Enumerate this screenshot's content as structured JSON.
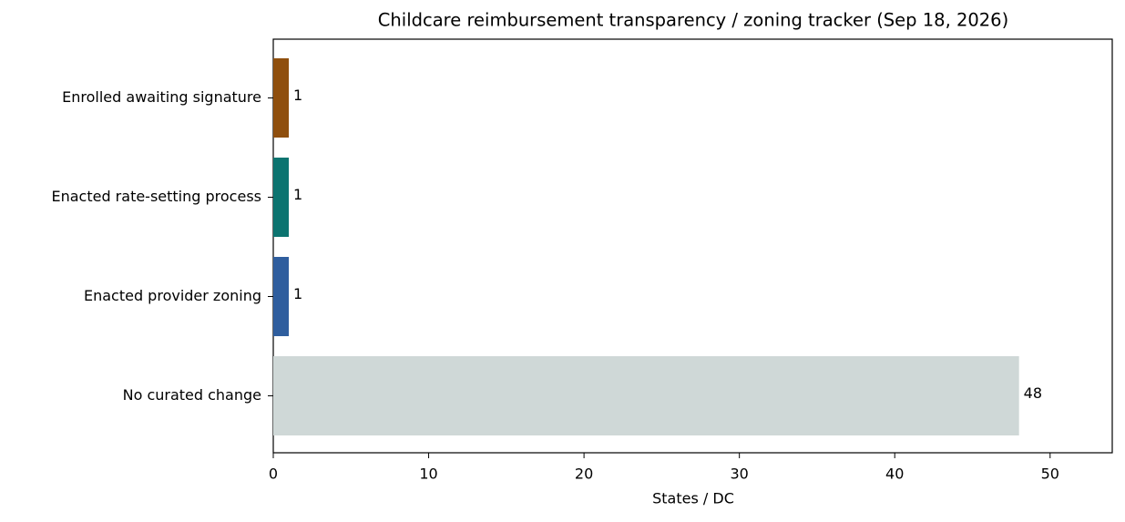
{
  "chart_data": {
    "type": "barh",
    "title": "Childcare reimbursement transparency / zoning tracker (Sep 18, 2026)",
    "xlabel": "States / DC",
    "categories": [
      "Enrolled awaiting signature",
      "Enacted rate-setting process",
      "Enacted provider zoning",
      "No curated change"
    ],
    "values": [
      1,
      1,
      1,
      48
    ],
    "colors": [
      "#8f4f0e",
      "#0c7470",
      "#2f5e9e",
      "#cfd8d7"
    ],
    "xlim": [
      0,
      54
    ],
    "xticks": [
      0,
      10,
      20,
      30,
      40,
      50
    ],
    "grid": false
  }
}
